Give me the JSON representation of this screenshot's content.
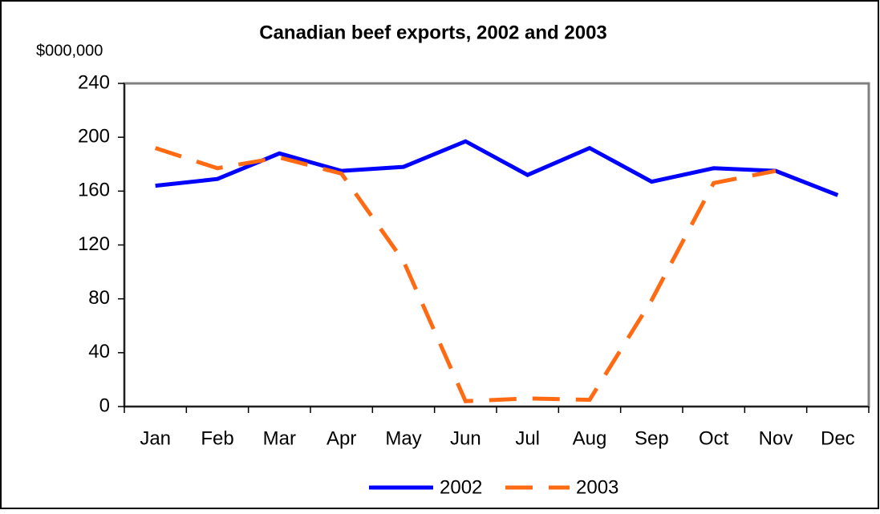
{
  "chart_data": {
    "type": "line",
    "title": "Canadian beef exports, 2002 and 2003",
    "y_label": "$000,000",
    "categories": [
      "Jan",
      "Feb",
      "Mar",
      "Apr",
      "May",
      "Jun",
      "Jul",
      "Aug",
      "Sep",
      "Oct",
      "Nov",
      "Dec"
    ],
    "series": [
      {
        "name": "2002",
        "color": "#0000ff",
        "dashed": false,
        "values": [
          164,
          169,
          188,
          175,
          178,
          197,
          172,
          192,
          167,
          177,
          175,
          157
        ]
      },
      {
        "name": "2003",
        "color": "#ff6a13",
        "dashed": true,
        "values": [
          192,
          177,
          185,
          173,
          108,
          4,
          6,
          5,
          79,
          166,
          175,
          null
        ]
      }
    ],
    "ylim": [
      0,
      240
    ],
    "yticks": [
      0,
      40,
      80,
      120,
      160,
      200,
      240
    ],
    "grid": false,
    "legend": "bottom"
  }
}
